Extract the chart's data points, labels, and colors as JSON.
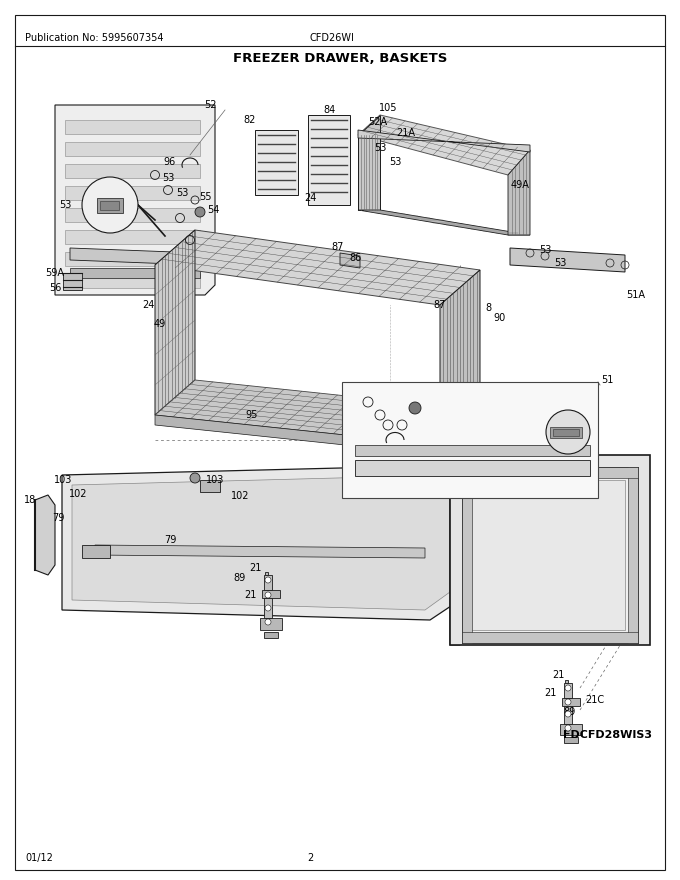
{
  "pub_no": "Publication No: 5995607354",
  "model": "CFD26WI",
  "title": "FREEZER DRAWER, BASKETS",
  "diagram_id": "FDCFD28WIS3",
  "date": "01/12",
  "page": "2",
  "bg_color": "#ffffff",
  "page_width": 6.8,
  "page_height": 8.8,
  "dpi": 100
}
